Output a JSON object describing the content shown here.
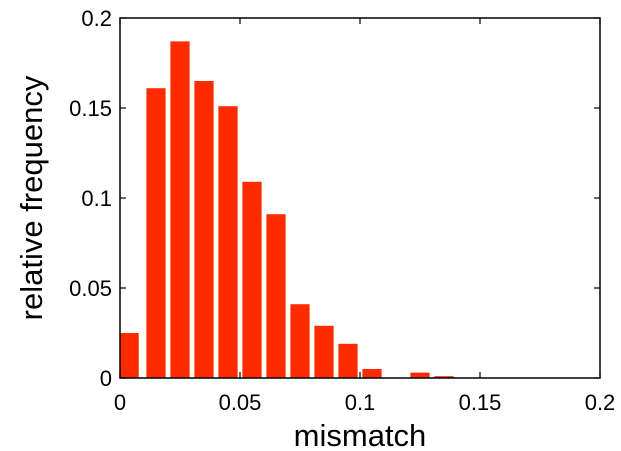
{
  "chart_data": {
    "type": "bar",
    "title": "",
    "xlabel": "mismatch",
    "ylabel": "relative frequency",
    "xlim": [
      0,
      0.2
    ],
    "ylim": [
      0,
      0.2
    ],
    "xticks": [
      "0",
      "0.05",
      "0.1",
      "0.15",
      "0.2"
    ],
    "yticks": [
      "0",
      "0.05",
      "0.1",
      "0.15",
      "0.2"
    ],
    "xtick_values": [
      0,
      0.05,
      0.1,
      0.15,
      0.2
    ],
    "ytick_values": [
      0,
      0.05,
      0.1,
      0.15,
      0.2
    ],
    "grid": false,
    "bar_color": "#ff2a00",
    "bin_width": 0.01,
    "x": [
      0,
      0.01,
      0.02,
      0.03,
      0.04,
      0.05,
      0.06,
      0.07,
      0.08,
      0.09,
      0.1,
      0.11,
      0.12,
      0.13,
      0.14,
      0.15,
      0.16,
      0.17,
      0.18,
      0.19
    ],
    "values": [
      0.025,
      0.161,
      0.187,
      0.165,
      0.151,
      0.109,
      0.091,
      0.041,
      0.029,
      0.019,
      0.005,
      0.0,
      0.003,
      0.001,
      0.0,
      0.0,
      0.0,
      0.0,
      0.0,
      0.0
    ]
  }
}
